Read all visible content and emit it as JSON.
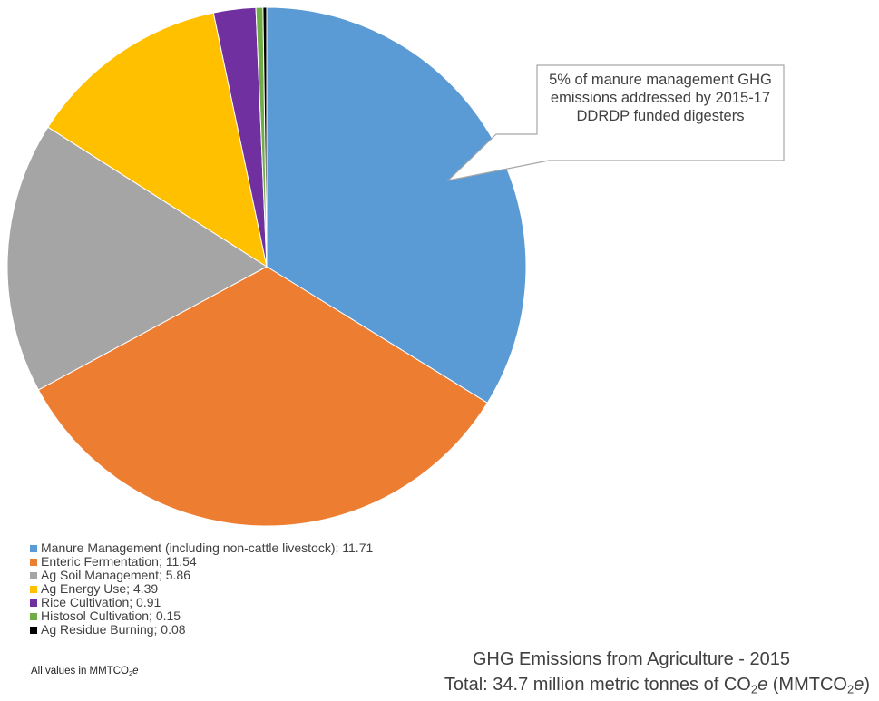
{
  "chart_data": {
    "type": "pie",
    "categories": [
      "Manure Management (including non-cattle livestock)",
      "Enteric Fermentation",
      "Ag Soil Management",
      "Ag Energy Use",
      "Rice Cultivation",
      "Histosol Cultivation",
      "Ag Residue Burning"
    ],
    "values": [
      11.71,
      11.54,
      5.86,
      4.39,
      0.91,
      0.15,
      0.08
    ],
    "colors": [
      "#5b9bd5",
      "#ed7d31",
      "#a5a5a5",
      "#ffc000",
      "#7030a0",
      "#70ad47",
      "#000000"
    ],
    "legend_labels": [
      "Manure Management (including non-cattle livestock); 11.71",
      "Enteric Fermentation; 11.54",
      "Ag Soil Management; 5.86",
      "Ag Energy Use; 4.39",
      "Rice Cultivation; 0.91",
      "Histosol Cultivation; 0.15",
      "Ag Residue Burning; 0.08"
    ],
    "legend_position": "bottom-left",
    "title": "GHG Emissions from Agriculture - 2015",
    "subtitle": {
      "prefix": "Total: 34.7 million metric tonnes of CO",
      "sub1": "2",
      "e1": "e",
      "mid": " (MMTCO",
      "sub2": "2",
      "e2": "e",
      "suffix": ")"
    },
    "annotation": "5% of manure management GHG emissions addressed by 2015-17 DDRDP funded digesters",
    "units_note": {
      "prefix": "All values in MMTCO",
      "sub": "2",
      "e": "e"
    }
  }
}
